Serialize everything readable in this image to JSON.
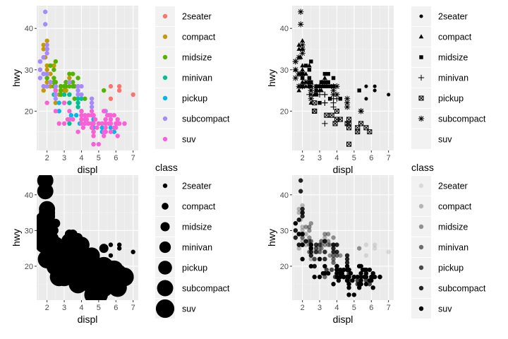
{
  "chart_data": [
    {
      "type": "scatter",
      "aesthetic": "color",
      "xlabel": "displ",
      "ylabel": "hwy",
      "xlim": [
        1.4,
        7.3
      ],
      "ylim": [
        10.5,
        45.5
      ],
      "xticks": [
        2,
        3,
        4,
        5,
        6,
        7
      ],
      "yticks": [
        20,
        30,
        40
      ],
      "grid": true,
      "legend_title": "",
      "legend_position": "right",
      "legend": [
        {
          "label": "2seater",
          "color": "#F8766D"
        },
        {
          "label": "compact",
          "color": "#C49A00"
        },
        {
          "label": "midsize",
          "color": "#53B400"
        },
        {
          "label": "minivan",
          "color": "#00C094"
        },
        {
          "label": "pickup",
          "color": "#00B6EB"
        },
        {
          "label": "subcompact",
          "color": "#A58AFF"
        },
        {
          "label": "suv",
          "color": "#FB61D7"
        }
      ]
    },
    {
      "type": "scatter",
      "aesthetic": "shape",
      "xlabel": "displ",
      "ylabel": "hwy",
      "xlim": [
        1.4,
        7.3
      ],
      "ylim": [
        10.5,
        45.5
      ],
      "xticks": [
        2,
        3,
        4,
        5,
        6,
        7
      ],
      "yticks": [
        20,
        30,
        40
      ],
      "grid": true,
      "legend_title": "",
      "legend_position": "right",
      "legend": [
        {
          "label": "2seater",
          "shape": "circle"
        },
        {
          "label": "compact",
          "shape": "triangle"
        },
        {
          "label": "midsize",
          "shape": "square"
        },
        {
          "label": "minivan",
          "shape": "plus"
        },
        {
          "label": "pickup",
          "shape": "boxed-x"
        },
        {
          "label": "subcompact",
          "shape": "asterisk"
        },
        {
          "label": "suv",
          "shape": "none"
        }
      ]
    },
    {
      "type": "scatter",
      "aesthetic": "size",
      "xlabel": "displ",
      "ylabel": "hwy",
      "xlim": [
        1.4,
        7.3
      ],
      "ylim": [
        10.5,
        45.5
      ],
      "xticks": [
        2,
        3,
        4,
        5,
        6,
        7
      ],
      "yticks": [
        20,
        30,
        40
      ],
      "grid": true,
      "legend_title": "class",
      "legend_position": "right",
      "legend": [
        {
          "label": "2seater",
          "size_rank": 1
        },
        {
          "label": "compact",
          "size_rank": 2
        },
        {
          "label": "midsize",
          "size_rank": 3
        },
        {
          "label": "minivan",
          "size_rank": 4
        },
        {
          "label": "pickup",
          "size_rank": 5
        },
        {
          "label": "subcompact",
          "size_rank": 6
        },
        {
          "label": "suv",
          "size_rank": 7
        }
      ]
    },
    {
      "type": "scatter",
      "aesthetic": "alpha",
      "xlabel": "displ",
      "ylabel": "hwy",
      "xlim": [
        1.4,
        7.3
      ],
      "ylim": [
        10.5,
        45.5
      ],
      "xticks": [
        2,
        3,
        4,
        5,
        6,
        7
      ],
      "yticks": [
        20,
        30,
        40
      ],
      "grid": true,
      "legend_title": "class",
      "legend_position": "right",
      "legend": [
        {
          "label": "2seater",
          "alpha": 0.1
        },
        {
          "label": "compact",
          "alpha": 0.25
        },
        {
          "label": "midsize",
          "alpha": 0.4
        },
        {
          "label": "minivan",
          "alpha": 0.55
        },
        {
          "label": "pickup",
          "alpha": 0.7
        },
        {
          "label": "subcompact",
          "alpha": 0.85
        },
        {
          "label": "suv",
          "alpha": 1.0
        }
      ]
    }
  ],
  "points": [
    {
      "cls": "2seater",
      "x": 5.7,
      "y": 26
    },
    {
      "cls": "2seater",
      "x": 5.7,
      "y": 23
    },
    {
      "cls": "2seater",
      "x": 6.2,
      "y": 26
    },
    {
      "cls": "2seater",
      "x": 6.2,
      "y": 25
    },
    {
      "cls": "2seater",
      "x": 7.0,
      "y": 24
    },
    {
      "cls": "compact",
      "x": 1.8,
      "y": 29
    },
    {
      "cls": "compact",
      "x": 1.8,
      "y": 29
    },
    {
      "cls": "compact",
      "x": 2.0,
      "y": 31
    },
    {
      "cls": "compact",
      "x": 2.0,
      "y": 30
    },
    {
      "cls": "compact",
      "x": 2.8,
      "y": 26
    },
    {
      "cls": "compact",
      "x": 2.8,
      "y": 26
    },
    {
      "cls": "compact",
      "x": 3.1,
      "y": 27
    },
    {
      "cls": "compact",
      "x": 1.8,
      "y": 26
    },
    {
      "cls": "compact",
      "x": 1.8,
      "y": 25
    },
    {
      "cls": "compact",
      "x": 2.0,
      "y": 28
    },
    {
      "cls": "compact",
      "x": 2.0,
      "y": 27
    },
    {
      "cls": "compact",
      "x": 2.8,
      "y": 25
    },
    {
      "cls": "compact",
      "x": 2.8,
      "y": 25
    },
    {
      "cls": "compact",
      "x": 3.1,
      "y": 25
    },
    {
      "cls": "compact",
      "x": 3.1,
      "y": 25
    },
    {
      "cls": "compact",
      "x": 2.2,
      "y": 27
    },
    {
      "cls": "compact",
      "x": 2.2,
      "y": 29
    },
    {
      "cls": "compact",
      "x": 2.4,
      "y": 31
    },
    {
      "cls": "compact",
      "x": 2.4,
      "y": 31
    },
    {
      "cls": "compact",
      "x": 3.0,
      "y": 26
    },
    {
      "cls": "compact",
      "x": 3.0,
      "y": 26
    },
    {
      "cls": "compact",
      "x": 3.3,
      "y": 28
    },
    {
      "cls": "compact",
      "x": 1.8,
      "y": 36
    },
    {
      "cls": "compact",
      "x": 1.8,
      "y": 33
    },
    {
      "cls": "compact",
      "x": 1.8,
      "y": 35
    },
    {
      "cls": "compact",
      "x": 2.0,
      "y": 37
    },
    {
      "cls": "compact",
      "x": 2.0,
      "y": 35
    },
    {
      "cls": "compact",
      "x": 2.0,
      "y": 29
    },
    {
      "cls": "compact",
      "x": 2.0,
      "y": 26
    },
    {
      "cls": "compact",
      "x": 2.5,
      "y": 27
    },
    {
      "cls": "compact",
      "x": 2.5,
      "y": 26
    },
    {
      "cls": "compact",
      "x": 2.8,
      "y": 24
    },
    {
      "cls": "compact",
      "x": 2.8,
      "y": 24
    },
    {
      "cls": "compact",
      "x": 2.2,
      "y": 26
    },
    {
      "cls": "compact",
      "x": 2.4,
      "y": 27
    },
    {
      "cls": "compact",
      "x": 1.6,
      "y": 30
    },
    {
      "cls": "compact",
      "x": 1.9,
      "y": 33
    },
    {
      "cls": "compact",
      "x": 2.0,
      "y": 35
    },
    {
      "cls": "compact",
      "x": 2.8,
      "y": 24
    },
    {
      "cls": "compact",
      "x": 3.0,
      "y": 25
    },
    {
      "cls": "compact",
      "x": 2.5,
      "y": 22
    },
    {
      "cls": "compact",
      "x": 2.7,
      "y": 24
    },
    {
      "cls": "midsize",
      "x": 2.4,
      "y": 27
    },
    {
      "cls": "midsize",
      "x": 2.4,
      "y": 30
    },
    {
      "cls": "midsize",
      "x": 3.1,
      "y": 26
    },
    {
      "cls": "midsize",
      "x": 3.5,
      "y": 29
    },
    {
      "cls": "midsize",
      "x": 3.6,
      "y": 26
    },
    {
      "cls": "midsize",
      "x": 2.4,
      "y": 26
    },
    {
      "cls": "midsize",
      "x": 3.0,
      "y": 26
    },
    {
      "cls": "midsize",
      "x": 3.3,
      "y": 26
    },
    {
      "cls": "midsize",
      "x": 3.3,
      "y": 27
    },
    {
      "cls": "midsize",
      "x": 3.8,
      "y": 26
    },
    {
      "cls": "midsize",
      "x": 3.8,
      "y": 28
    },
    {
      "cls": "midsize",
      "x": 2.5,
      "y": 27
    },
    {
      "cls": "midsize",
      "x": 2.8,
      "y": 26
    },
    {
      "cls": "midsize",
      "x": 2.8,
      "y": 26
    },
    {
      "cls": "midsize",
      "x": 3.1,
      "y": 27
    },
    {
      "cls": "midsize",
      "x": 2.0,
      "y": 28
    },
    {
      "cls": "midsize",
      "x": 2.0,
      "y": 26
    },
    {
      "cls": "midsize",
      "x": 2.0,
      "y": 29
    },
    {
      "cls": "midsize",
      "x": 2.8,
      "y": 24
    },
    {
      "cls": "midsize",
      "x": 2.8,
      "y": 25
    },
    {
      "cls": "midsize",
      "x": 3.6,
      "y": 23
    },
    {
      "cls": "midsize",
      "x": 4.2,
      "y": 23
    },
    {
      "cls": "midsize",
      "x": 5.3,
      "y": 25
    },
    {
      "cls": "midsize",
      "x": 3.5,
      "y": 26
    },
    {
      "cls": "midsize",
      "x": 3.0,
      "y": 22
    },
    {
      "cls": "midsize",
      "x": 2.5,
      "y": 32
    },
    {
      "cls": "midsize",
      "x": 2.2,
      "y": 31
    },
    {
      "cls": "midsize",
      "x": 2.4,
      "y": 28
    },
    {
      "cls": "midsize",
      "x": 3.5,
      "y": 27
    },
    {
      "cls": "midsize",
      "x": 3.3,
      "y": 29
    },
    {
      "cls": "minivan",
      "x": 2.4,
      "y": 24
    },
    {
      "cls": "minivan",
      "x": 3.0,
      "y": 24
    },
    {
      "cls": "minivan",
      "x": 3.3,
      "y": 22
    },
    {
      "cls": "minivan",
      "x": 3.3,
      "y": 22
    },
    {
      "cls": "minivan",
      "x": 3.3,
      "y": 24
    },
    {
      "cls": "minivan",
      "x": 3.3,
      "y": 24
    },
    {
      "cls": "minivan",
      "x": 3.3,
      "y": 17
    },
    {
      "cls": "minivan",
      "x": 3.8,
      "y": 22
    },
    {
      "cls": "minivan",
      "x": 3.8,
      "y": 21
    },
    {
      "cls": "minivan",
      "x": 3.8,
      "y": 23
    },
    {
      "cls": "minivan",
      "x": 4.0,
      "y": 23
    },
    {
      "cls": "pickup",
      "x": 2.7,
      "y": 20
    },
    {
      "cls": "pickup",
      "x": 2.7,
      "y": 20
    },
    {
      "cls": "pickup",
      "x": 3.4,
      "y": 19
    },
    {
      "cls": "pickup",
      "x": 4.0,
      "y": 20
    },
    {
      "cls": "pickup",
      "x": 4.7,
      "y": 17
    },
    {
      "cls": "pickup",
      "x": 3.9,
      "y": 17
    },
    {
      "cls": "pickup",
      "x": 4.7,
      "y": 18
    },
    {
      "cls": "pickup",
      "x": 5.2,
      "y": 16
    },
    {
      "cls": "pickup",
      "x": 5.7,
      "y": 16
    },
    {
      "cls": "pickup",
      "x": 5.9,
      "y": 15
    },
    {
      "cls": "pickup",
      "x": 4.7,
      "y": 12
    },
    {
      "cls": "pickup",
      "x": 3.7,
      "y": 19
    },
    {
      "cls": "pickup",
      "x": 4.6,
      "y": 17
    },
    {
      "cls": "pickup",
      "x": 5.4,
      "y": 17
    },
    {
      "cls": "pickup",
      "x": 4.2,
      "y": 18
    },
    {
      "cls": "pickup",
      "x": 2.7,
      "y": 22
    },
    {
      "cls": "pickup",
      "x": 4.0,
      "y": 18
    },
    {
      "cls": "pickup",
      "x": 4.7,
      "y": 16
    },
    {
      "cls": "pickup",
      "x": 5.2,
      "y": 15
    },
    {
      "cls": "subcompact",
      "x": 1.8,
      "y": 29
    },
    {
      "cls": "subcompact",
      "x": 1.6,
      "y": 28
    },
    {
      "cls": "subcompact",
      "x": 1.6,
      "y": 32
    },
    {
      "cls": "subcompact",
      "x": 1.8,
      "y": 33
    },
    {
      "cls": "subcompact",
      "x": 1.9,
      "y": 44
    },
    {
      "cls": "subcompact",
      "x": 1.9,
      "y": 41
    },
    {
      "cls": "subcompact",
      "x": 2.0,
      "y": 29
    },
    {
      "cls": "subcompact",
      "x": 2.0,
      "y": 26
    },
    {
      "cls": "subcompact",
      "x": 1.8,
      "y": 29
    },
    {
      "cls": "subcompact",
      "x": 2.0,
      "y": 29
    },
    {
      "cls": "subcompact",
      "x": 2.5,
      "y": 26
    },
    {
      "cls": "subcompact",
      "x": 2.5,
      "y": 24
    },
    {
      "cls": "subcompact",
      "x": 2.5,
      "y": 26
    },
    {
      "cls": "subcompact",
      "x": 2.0,
      "y": 26
    },
    {
      "cls": "subcompact",
      "x": 1.6,
      "y": 32
    },
    {
      "cls": "subcompact",
      "x": 1.6,
      "y": 30
    },
    {
      "cls": "subcompact",
      "x": 2.0,
      "y": 36
    },
    {
      "cls": "subcompact",
      "x": 2.0,
      "y": 34
    },
    {
      "cls": "subcompact",
      "x": 3.8,
      "y": 26
    },
    {
      "cls": "subcompact",
      "x": 3.8,
      "y": 25
    },
    {
      "cls": "subcompact",
      "x": 4.0,
      "y": 26
    },
    {
      "cls": "subcompact",
      "x": 4.0,
      "y": 24
    },
    {
      "cls": "subcompact",
      "x": 4.6,
      "y": 21
    },
    {
      "cls": "subcompact",
      "x": 4.6,
      "y": 22
    },
    {
      "cls": "subcompact",
      "x": 4.6,
      "y": 23
    },
    {
      "cls": "subcompact",
      "x": 5.4,
      "y": 20
    },
    {
      "cls": "subcompact",
      "x": 5.4,
      "y": 20
    },
    {
      "cls": "subcompact",
      "x": 2.5,
      "y": 25
    },
    {
      "cls": "subcompact",
      "x": 2.5,
      "y": 23
    },
    {
      "cls": "subcompact",
      "x": 1.8,
      "y": 26
    },
    {
      "cls": "subcompact",
      "x": 2.2,
      "y": 27
    },
    {
      "cls": "subcompact",
      "x": 2.5,
      "y": 25
    },
    {
      "cls": "subcompact",
      "x": 3.3,
      "y": 27
    },
    {
      "cls": "subcompact",
      "x": 3.8,
      "y": 24
    },
    {
      "cls": "subcompact",
      "x": 2.0,
      "y": 35
    },
    {
      "cls": "suv",
      "x": 5.3,
      "y": 20
    },
    {
      "cls": "suv",
      "x": 5.3,
      "y": 15
    },
    {
      "cls": "suv",
      "x": 5.3,
      "y": 20
    },
    {
      "cls": "suv",
      "x": 5.7,
      "y": 17
    },
    {
      "cls": "suv",
      "x": 6.0,
      "y": 17
    },
    {
      "cls": "suv",
      "x": 5.7,
      "y": 17
    },
    {
      "cls": "suv",
      "x": 6.5,
      "y": 17
    },
    {
      "cls": "suv",
      "x": 4.0,
      "y": 19
    },
    {
      "cls": "suv",
      "x": 4.0,
      "y": 19
    },
    {
      "cls": "suv",
      "x": 4.6,
      "y": 17
    },
    {
      "cls": "suv",
      "x": 5.0,
      "y": 17
    },
    {
      "cls": "suv",
      "x": 4.7,
      "y": 19
    },
    {
      "cls": "suv",
      "x": 4.7,
      "y": 19
    },
    {
      "cls": "suv",
      "x": 5.7,
      "y": 18
    },
    {
      "cls": "suv",
      "x": 6.1,
      "y": 14
    },
    {
      "cls": "suv",
      "x": 4.0,
      "y": 17
    },
    {
      "cls": "suv",
      "x": 4.2,
      "y": 18
    },
    {
      "cls": "suv",
      "x": 4.4,
      "y": 17
    },
    {
      "cls": "suv",
      "x": 4.6,
      "y": 16
    },
    {
      "cls": "suv",
      "x": 5.4,
      "y": 15
    },
    {
      "cls": "suv",
      "x": 5.4,
      "y": 17
    },
    {
      "cls": "suv",
      "x": 4.0,
      "y": 20
    },
    {
      "cls": "suv",
      "x": 4.6,
      "y": 17
    },
    {
      "cls": "suv",
      "x": 4.7,
      "y": 12
    },
    {
      "cls": "suv",
      "x": 5.7,
      "y": 19
    },
    {
      "cls": "suv",
      "x": 3.0,
      "y": 22
    },
    {
      "cls": "suv",
      "x": 4.0,
      "y": 20
    },
    {
      "cls": "suv",
      "x": 4.6,
      "y": 20
    },
    {
      "cls": "suv",
      "x": 5.0,
      "y": 12
    },
    {
      "cls": "suv",
      "x": 5.4,
      "y": 16
    },
    {
      "cls": "suv",
      "x": 6.1,
      "y": 18
    },
    {
      "cls": "suv",
      "x": 4.2,
      "y": 19
    },
    {
      "cls": "suv",
      "x": 4.4,
      "y": 17
    },
    {
      "cls": "suv",
      "x": 4.7,
      "y": 15
    },
    {
      "cls": "suv",
      "x": 5.3,
      "y": 14
    },
    {
      "cls": "suv",
      "x": 5.6,
      "y": 17
    },
    {
      "cls": "suv",
      "x": 3.3,
      "y": 18
    },
    {
      "cls": "suv",
      "x": 4.0,
      "y": 18
    },
    {
      "cls": "suv",
      "x": 4.7,
      "y": 15
    },
    {
      "cls": "suv",
      "x": 5.4,
      "y": 18
    },
    {
      "cls": "suv",
      "x": 5.9,
      "y": 19
    },
    {
      "cls": "suv",
      "x": 4.7,
      "y": 17
    },
    {
      "cls": "suv",
      "x": 2.5,
      "y": 20
    },
    {
      "cls": "suv",
      "x": 2.5,
      "y": 25
    },
    {
      "cls": "suv",
      "x": 3.3,
      "y": 20
    },
    {
      "cls": "suv",
      "x": 3.5,
      "y": 18
    },
    {
      "cls": "suv",
      "x": 4.4,
      "y": 17
    },
    {
      "cls": "suv",
      "x": 4.7,
      "y": 14
    },
    {
      "cls": "suv",
      "x": 5.7,
      "y": 15
    },
    {
      "cls": "suv",
      "x": 6.5,
      "y": 17
    },
    {
      "cls": "suv",
      "x": 6.1,
      "y": 17
    },
    {
      "cls": "suv",
      "x": 5.4,
      "y": 15
    },
    {
      "cls": "suv",
      "x": 3.0,
      "y": 17
    },
    {
      "cls": "suv",
      "x": 4.0,
      "y": 19
    },
    {
      "cls": "suv",
      "x": 4.6,
      "y": 19
    },
    {
      "cls": "suv",
      "x": 5.0,
      "y": 17
    },
    {
      "cls": "suv",
      "x": 3.8,
      "y": 15
    },
    {
      "cls": "suv",
      "x": 4.2,
      "y": 17
    },
    {
      "cls": "suv",
      "x": 4.4,
      "y": 19
    },
    {
      "cls": "suv",
      "x": 4.6,
      "y": 16
    },
    {
      "cls": "suv",
      "x": 4.8,
      "y": 18
    },
    {
      "cls": "suv",
      "x": 5.2,
      "y": 17
    },
    {
      "cls": "suv",
      "x": 5.5,
      "y": 19
    },
    {
      "cls": "suv",
      "x": 5.9,
      "y": 16
    },
    {
      "cls": "suv",
      "x": 6.2,
      "y": 17
    },
    {
      "cls": "suv",
      "x": 2.0,
      "y": 22
    },
    {
      "cls": "suv",
      "x": 4.3,
      "y": 18
    },
    {
      "cls": "suv",
      "x": 3.2,
      "y": 18
    },
    {
      "cls": "suv",
      "x": 4.1,
      "y": 16
    },
    {
      "cls": "suv",
      "x": 4.9,
      "y": 16
    },
    {
      "cls": "suv",
      "x": 5.6,
      "y": 19
    },
    {
      "cls": "suv",
      "x": 2.7,
      "y": 17
    },
    {
      "cls": "suv",
      "x": 6.0,
      "y": 16
    }
  ]
}
